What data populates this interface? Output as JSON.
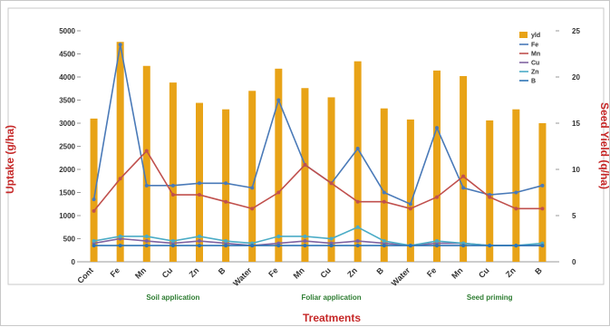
{
  "chart_data": {
    "type": "bar",
    "categories": [
      "Cont",
      "Fe",
      "Mn",
      "Cu",
      "Zn",
      "B",
      "Water",
      "Fe",
      "Mn",
      "Cu",
      "Zn",
      "B",
      "Water",
      "Fe",
      "Mn",
      "Cu",
      "Zn",
      "B"
    ],
    "groups": [
      {
        "label": "Soil application",
        "from": 1,
        "to": 5
      },
      {
        "label": "Foliar application",
        "from": 7,
        "to": 11
      },
      {
        "label": "Seed priming",
        "from": 13,
        "to": 17
      }
    ],
    "xlabel": "Treatments",
    "ylabel": "Uptake (g/ha)",
    "y2label": "Seed Yield (q/ha)",
    "ylim": [
      0,
      5000
    ],
    "y2lim": [
      0,
      25
    ],
    "yticks": [
      0,
      500,
      1000,
      1500,
      2000,
      2500,
      3000,
      3500,
      4000,
      4500,
      5000
    ],
    "y2ticks": [
      0,
      5,
      10,
      15,
      20,
      25
    ],
    "legend_position": "top-right",
    "bar_series": {
      "name": "yld",
      "axis": "right",
      "color": "#e8a317",
      "values": [
        15.5,
        23.8,
        21.2,
        19.4,
        17.2,
        16.5,
        18.5,
        20.9,
        18.8,
        17.8,
        21.7,
        16.6,
        15.4,
        20.7,
        20.1,
        15.3,
        16.5,
        15.0
      ]
    },
    "line_series": [
      {
        "name": "Fe",
        "color": "#4a7ab8",
        "values": [
          1350,
          4700,
          1650,
          1650,
          1700,
          1700,
          1600,
          3500,
          2100,
          1700,
          2450,
          1500,
          1250,
          2900,
          1600,
          1450,
          1500,
          1650
        ]
      },
      {
        "name": "Mn",
        "color": "#c0504d",
        "values": [
          1100,
          1800,
          2400,
          1450,
          1450,
          1300,
          1150,
          1500,
          2100,
          1700,
          1300,
          1300,
          1150,
          1400,
          1850,
          1400,
          1150,
          1150
        ]
      },
      {
        "name": "Cu",
        "color": "#8064a2",
        "values": [
          400,
          500,
          450,
          400,
          450,
          400,
          350,
          400,
          450,
          400,
          450,
          400,
          350,
          400,
          400,
          350,
          350,
          350
        ]
      },
      {
        "name": "Zn",
        "color": "#4bacc6",
        "values": [
          450,
          550,
          550,
          450,
          550,
          450,
          400,
          550,
          550,
          500,
          750,
          450,
          350,
          450,
          400,
          350,
          350,
          400
        ]
      },
      {
        "name": "B",
        "color": "#2e75b6",
        "values": [
          350,
          350,
          350,
          350,
          350,
          350,
          350,
          350,
          350,
          350,
          350,
          350,
          350,
          350,
          350,
          350,
          350,
          350
        ]
      }
    ]
  }
}
